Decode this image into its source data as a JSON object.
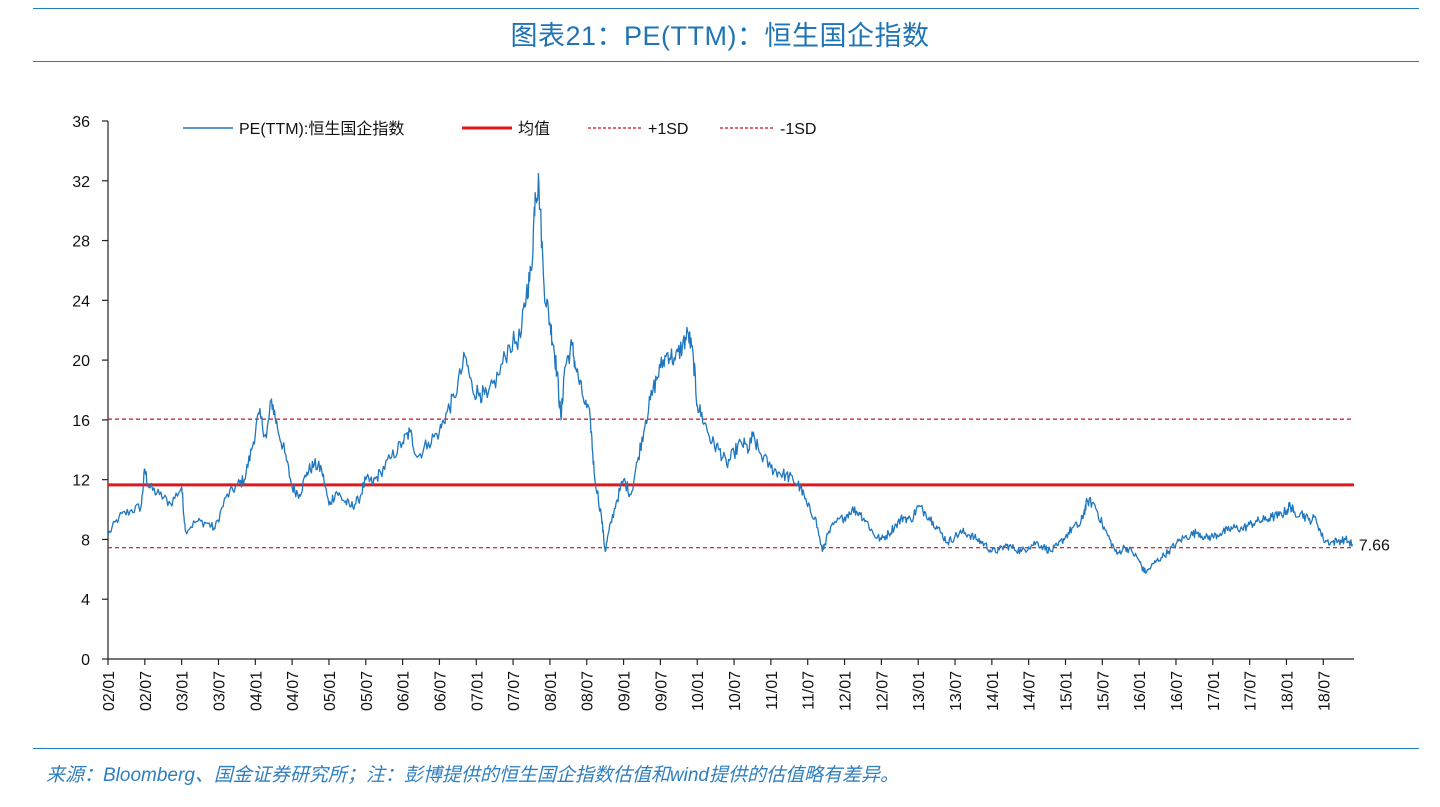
{
  "header": {
    "title": "图表21：PE(TTM)：恒生国企指数"
  },
  "footer": {
    "source": "来源：Bloomberg、国金证券研究所；注：彭博提供的恒生国企指数估值和wind提供的估值略有差异。"
  },
  "colors": {
    "series": "#1f77bf",
    "mean": "#e3161b",
    "sd": "#c4141c",
    "rule": "#1f7fc4",
    "title": "#1f74b6"
  },
  "chart_data": {
    "type": "line",
    "title": "图表21：PE(TTM)：恒生国企指数",
    "xlabel": "",
    "ylabel": "",
    "ylim": [
      0,
      36
    ],
    "yticks": [
      0,
      4,
      8,
      12,
      16,
      20,
      24,
      28,
      32,
      36
    ],
    "xlim": [
      2002.0,
      2018.917
    ],
    "categories": [
      "02/01",
      "02/07",
      "03/01",
      "03/07",
      "04/01",
      "04/07",
      "05/01",
      "05/07",
      "06/01",
      "06/07",
      "07/01",
      "07/07",
      "08/01",
      "08/07",
      "09/01",
      "09/07",
      "10/01",
      "10/07",
      "11/01",
      "11/07",
      "12/01",
      "12/07",
      "13/01",
      "13/07",
      "14/01",
      "14/07",
      "15/01",
      "15/07",
      "16/01",
      "16/07",
      "17/01",
      "17/07",
      "18/01",
      "18/07"
    ],
    "series": [
      {
        "name": "PE(TTM):恒生国企指数",
        "style": "solid-thin",
        "points": [
          [
            2002.0,
            8.3
          ],
          [
            2002.15,
            9.5
          ],
          [
            2002.3,
            9.9
          ],
          [
            2002.45,
            10.2
          ],
          [
            2002.5,
            12.7
          ],
          [
            2002.55,
            11.5
          ],
          [
            2002.7,
            11.0
          ],
          [
            2002.85,
            10.4
          ],
          [
            2003.0,
            11.5
          ],
          [
            2003.05,
            8.6
          ],
          [
            2003.2,
            9.2
          ],
          [
            2003.35,
            9.1
          ],
          [
            2003.45,
            8.7
          ],
          [
            2003.6,
            10.8
          ],
          [
            2003.75,
            11.6
          ],
          [
            2003.85,
            12.0
          ],
          [
            2003.95,
            14.0
          ],
          [
            2004.05,
            16.4
          ],
          [
            2004.15,
            14.8
          ],
          [
            2004.22,
            17.4
          ],
          [
            2004.3,
            15.5
          ],
          [
            2004.4,
            13.8
          ],
          [
            2004.5,
            11.5
          ],
          [
            2004.6,
            11.0
          ],
          [
            2004.7,
            12.5
          ],
          [
            2004.8,
            13.0
          ],
          [
            2004.9,
            12.7
          ],
          [
            2005.0,
            10.3
          ],
          [
            2005.1,
            11.2
          ],
          [
            2005.2,
            10.6
          ],
          [
            2005.3,
            10.2
          ],
          [
            2005.4,
            10.6
          ],
          [
            2005.5,
            12.0
          ],
          [
            2005.6,
            11.8
          ],
          [
            2005.7,
            12.5
          ],
          [
            2005.85,
            13.5
          ],
          [
            2006.0,
            14.5
          ],
          [
            2006.1,
            15.2
          ],
          [
            2006.2,
            13.5
          ],
          [
            2006.35,
            14.5
          ],
          [
            2006.5,
            15.2
          ],
          [
            2006.6,
            16.5
          ],
          [
            2006.7,
            17.5
          ],
          [
            2006.85,
            20.2
          ],
          [
            2006.95,
            18.0
          ],
          [
            2007.05,
            17.8
          ],
          [
            2007.15,
            17.5
          ],
          [
            2007.3,
            19.0
          ],
          [
            2007.45,
            21.0
          ],
          [
            2007.6,
            21.5
          ],
          [
            2007.68,
            24.5
          ],
          [
            2007.75,
            26.0
          ],
          [
            2007.8,
            31.2
          ],
          [
            2007.85,
            31.8
          ],
          [
            2007.92,
            25.0
          ],
          [
            2008.0,
            22.5
          ],
          [
            2008.05,
            21.0
          ],
          [
            2008.1,
            19.0
          ],
          [
            2008.15,
            16.0
          ],
          [
            2008.2,
            19.5
          ],
          [
            2008.3,
            21.0
          ],
          [
            2008.35,
            19.5
          ],
          [
            2008.45,
            17.5
          ],
          [
            2008.55,
            16.0
          ],
          [
            2008.6,
            12.5
          ],
          [
            2008.7,
            9.5
          ],
          [
            2008.75,
            7.2
          ],
          [
            2008.8,
            8.5
          ],
          [
            2008.9,
            10.5
          ],
          [
            2009.0,
            12.0
          ],
          [
            2009.1,
            11.0
          ],
          [
            2009.2,
            13.5
          ],
          [
            2009.3,
            16.0
          ],
          [
            2009.4,
            18.0
          ],
          [
            2009.5,
            19.5
          ],
          [
            2009.6,
            20.5
          ],
          [
            2009.7,
            20.0
          ],
          [
            2009.8,
            21.0
          ],
          [
            2009.88,
            21.8
          ],
          [
            2009.95,
            20.0
          ],
          [
            2010.0,
            17.0
          ],
          [
            2010.1,
            15.8
          ],
          [
            2010.2,
            14.5
          ],
          [
            2010.3,
            14.0
          ],
          [
            2010.4,
            13.0
          ],
          [
            2010.5,
            13.8
          ],
          [
            2010.6,
            14.5
          ],
          [
            2010.7,
            14.0
          ],
          [
            2010.75,
            14.9
          ],
          [
            2010.85,
            13.8
          ],
          [
            2011.0,
            12.8
          ],
          [
            2011.1,
            12.5
          ],
          [
            2011.2,
            12.3
          ],
          [
            2011.3,
            12.0
          ],
          [
            2011.4,
            11.5
          ],
          [
            2011.5,
            10.2
          ],
          [
            2011.6,
            9.5
          ],
          [
            2011.7,
            7.2
          ],
          [
            2011.75,
            8.0
          ],
          [
            2011.85,
            9.0
          ],
          [
            2012.0,
            9.5
          ],
          [
            2012.1,
            10.0
          ],
          [
            2012.2,
            9.8
          ],
          [
            2012.3,
            9.2
          ],
          [
            2012.4,
            8.3
          ],
          [
            2012.5,
            8.0
          ],
          [
            2012.6,
            8.4
          ],
          [
            2012.7,
            9.0
          ],
          [
            2012.8,
            9.5
          ],
          [
            2012.9,
            9.3
          ],
          [
            2013.0,
            10.2
          ],
          [
            2013.1,
            9.8
          ],
          [
            2013.2,
            9.2
          ],
          [
            2013.3,
            8.5
          ],
          [
            2013.4,
            7.8
          ],
          [
            2013.5,
            8.2
          ],
          [
            2013.6,
            8.5
          ],
          [
            2013.7,
            8.3
          ],
          [
            2013.8,
            8.0
          ],
          [
            2013.9,
            7.7
          ],
          [
            2014.0,
            7.2
          ],
          [
            2014.1,
            7.3
          ],
          [
            2014.2,
            7.6
          ],
          [
            2014.3,
            7.4
          ],
          [
            2014.4,
            7.2
          ],
          [
            2014.5,
            7.5
          ],
          [
            2014.6,
            7.8
          ],
          [
            2014.7,
            7.5
          ],
          [
            2014.8,
            7.2
          ],
          [
            2014.9,
            7.6
          ],
          [
            2015.0,
            8.2
          ],
          [
            2015.1,
            8.8
          ],
          [
            2015.2,
            9.0
          ],
          [
            2015.25,
            9.8
          ],
          [
            2015.3,
            10.6
          ],
          [
            2015.4,
            10.3
          ],
          [
            2015.5,
            9.0
          ],
          [
            2015.6,
            8.0
          ],
          [
            2015.7,
            7.0
          ],
          [
            2015.8,
            7.5
          ],
          [
            2015.9,
            7.2
          ],
          [
            2016.0,
            6.6
          ],
          [
            2016.05,
            6.0
          ],
          [
            2016.1,
            5.8
          ],
          [
            2016.2,
            6.4
          ],
          [
            2016.3,
            6.8
          ],
          [
            2016.4,
            7.2
          ],
          [
            2016.5,
            7.7
          ],
          [
            2016.6,
            8.1
          ],
          [
            2016.7,
            8.3
          ],
          [
            2016.8,
            8.5
          ],
          [
            2016.9,
            8.1
          ],
          [
            2017.0,
            8.2
          ],
          [
            2017.1,
            8.4
          ],
          [
            2017.2,
            8.6
          ],
          [
            2017.3,
            8.8
          ],
          [
            2017.4,
            8.7
          ],
          [
            2017.5,
            9.0
          ],
          [
            2017.6,
            9.2
          ],
          [
            2017.7,
            9.3
          ],
          [
            2017.8,
            9.5
          ],
          [
            2017.9,
            9.6
          ],
          [
            2018.0,
            9.9
          ],
          [
            2018.05,
            10.3
          ],
          [
            2018.1,
            9.8
          ],
          [
            2018.2,
            9.8
          ],
          [
            2018.3,
            9.3
          ],
          [
            2018.4,
            9.4
          ],
          [
            2018.5,
            8.0
          ],
          [
            2018.6,
            7.8
          ],
          [
            2018.7,
            7.9
          ],
          [
            2018.8,
            8.0
          ],
          [
            2018.9,
            7.66
          ]
        ]
      },
      {
        "name": "均值",
        "style": "solid-thick",
        "value": 11.65
      },
      {
        "name": "+1SD",
        "style": "dashed",
        "value": 16.05
      },
      {
        "name": "-1SD",
        "style": "dashed",
        "value": 7.45
      }
    ],
    "last_value_label": "7.66",
    "legend_position": "top"
  }
}
